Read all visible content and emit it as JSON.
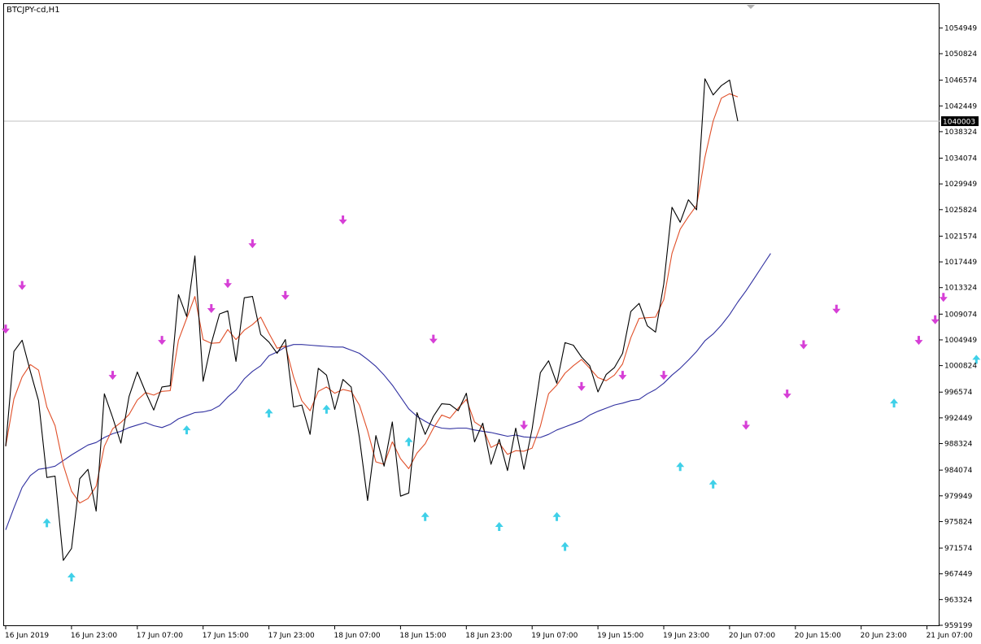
{
  "window": {
    "symbol_label": "BTCJPY-cd,H1"
  },
  "colors": {
    "price": "#000000",
    "fast_ma": "#e0502a",
    "slow_ma": "#3030a0",
    "sell_arrow": "#d63fd6",
    "buy_arrow": "#3fd0e8",
    "current_price_bg": "#000000",
    "grid_line": "#c0c0c0"
  },
  "chart_data": {
    "type": "line",
    "title": "BTCJPY-cd,H1",
    "xlabel": "",
    "ylabel": "",
    "ylim": [
      959199,
      1056949
    ],
    "y_ticks": [
      "1054949",
      "1050824",
      "1046574",
      "1042449",
      "1038324",
      "1034074",
      "1029949",
      "1025824",
      "1021574",
      "1017449",
      "1013324",
      "1009074",
      "1004949",
      "1000824",
      "996574",
      "992449",
      "988324",
      "984074",
      "979949",
      "975824",
      "971574",
      "967449",
      "963324",
      "959199"
    ],
    "x_ticks": [
      "16 Jun 2019",
      "16 Jun 23:00",
      "17 Jun 07:00",
      "17 Jun 15:00",
      "17 Jun 23:00",
      "18 Jun 07:00",
      "18 Jun 15:00",
      "18 Jun 23:00",
      "19 Jun 07:00",
      "19 Jun 15:00",
      "19 Jun 23:00",
      "20 Jun 07:00",
      "20 Jun 15:00",
      "20 Jun 23:00",
      "21 Jun 07:00"
    ],
    "current_price": 1040003,
    "series": [
      {
        "values": [
          987900,
          1003100,
          1004900,
          999900,
          995200,
          982900,
          983100,
          969600,
          971500,
          982700,
          984200,
          977500,
          996300,
          992500,
          988400,
          995900,
          999800,
          996600,
          993700,
          997400,
          997600,
          1012200,
          1008700,
          1018400,
          998300,
          1004400,
          1009100,
          1009600,
          1001500,
          1011700,
          1011900,
          1005800,
          1004600,
          1002800,
          1005000,
          994200,
          994500,
          989800,
          1000400,
          999300,
          993800,
          998600,
          997400,
          989300,
          979200,
          989600,
          984700,
          991800,
          979900,
          980400,
          993300,
          989800,
          992700,
          994700,
          994600,
          993600,
          996400,
          988600,
          991600,
          985000,
          989000,
          984000,
          990800,
          984200,
          990700,
          999700,
          1001600,
          998000,
          1004500,
          1004100,
          1002200,
          1000800,
          996600,
          999400,
          1000500,
          1002800,
          1009500,
          1010800,
          1007200,
          1006200,
          1013900,
          1026200,
          1023800,
          1027400,
          1025800,
          1046800,
          1044200,
          1045700,
          1046600,
          1040000
        ]
      },
      {
        "values": [
          987900,
          995500,
          999000,
          1001000,
          1000100,
          994200,
          991200,
          984900,
          980700,
          978800,
          979500,
          981500,
          987900,
          990700,
          991700,
          993000,
          995300,
          996500,
          996100,
          996700,
          996800,
          1004900,
          1008400,
          1011900,
          1005000,
          1004400,
          1004500,
          1006600,
          1005000,
          1006500,
          1007400,
          1008600,
          1006000,
          1003600,
          1004000,
          999000,
          995200,
          993600,
          996700,
          997400,
          996400,
          997000,
          996700,
          994500,
          990400,
          985400,
          985000,
          988600,
          985900,
          984300,
          986800,
          988300,
          990800,
          992900,
          992400,
          994000,
          995400,
          991800,
          990900,
          987700,
          988400,
          986600,
          987200,
          987100,
          987600,
          991100,
          996300,
          997700,
          999600,
          1000800,
          1001800,
          1000400,
          998900,
          998400,
          999300,
          1001100,
          1005300,
          1008400,
          1008500,
          1008600,
          1011400,
          1018800,
          1022700,
          1024700,
          1026500,
          1034200,
          1040000,
          1043700,
          1044400,
          1043900
        ]
      },
      {
        "values": [
          974500,
          978000,
          981300,
          983200,
          984200,
          984400,
          984700,
          985600,
          986500,
          987300,
          988100,
          988500,
          989300,
          989900,
          990300,
          990900,
          991300,
          991700,
          991200,
          990900,
          991400,
          992300,
          992800,
          993300,
          993400,
          993700,
          994400,
          995800,
          996900,
          998700,
          999900,
          1000800,
          1002400,
          1003000,
          1003800,
          1004200,
          1004200,
          1004100,
          1004000,
          1003900,
          1003800,
          1003800,
          1003300,
          1002800,
          1001800,
          1000700,
          999300,
          997700,
          995800,
          993900,
          992700,
          991900,
          991200,
          990800,
          990700,
          990800,
          990800,
          990500,
          990300,
          990100,
          989800,
          989500,
          989700,
          989400,
          989300,
          989300,
          989800,
          990500,
          991000,
          991500,
          992000,
          992900,
          993500,
          994000,
          994500,
          994800,
          995200,
          995400,
          996300,
          997000,
          998000,
          999300,
          1000400,
          1001700,
          1003100,
          1004800,
          1005900,
          1007300,
          1009000,
          1011000,
          1012800,
          1014800,
          1016800,
          1018800
        ]
      }
    ],
    "sell_signals": [
      {
        "i": 0,
        "y": 1006600
      },
      {
        "i": 2,
        "y": 1013600
      },
      {
        "i": 13,
        "y": 999200
      },
      {
        "i": 19,
        "y": 1004800
      },
      {
        "i": 25,
        "y": 1009900
      },
      {
        "i": 27,
        "y": 1013900
      },
      {
        "i": 30,
        "y": 1020300
      },
      {
        "i": 34,
        "y": 1012000
      },
      {
        "i": 41,
        "y": 1024100
      },
      {
        "i": 52,
        "y": 1005000
      },
      {
        "i": 63,
        "y": 991200
      },
      {
        "i": 70,
        "y": 997400
      },
      {
        "i": 75,
        "y": 999200
      },
      {
        "i": 80,
        "y": 999200
      },
      {
        "i": 90,
        "y": 991200
      },
      {
        "i": 95,
        "y": 996200
      },
      {
        "i": 97,
        "y": 1004100
      },
      {
        "i": 101,
        "y": 1009800
      },
      {
        "i": 111,
        "y": 1004800
      },
      {
        "i": 113,
        "y": 1008100
      },
      {
        "i": 114,
        "y": 1011700
      },
      {
        "i": 120,
        "y": 1023800
      },
      {
        "i": 121,
        "y": 1031600
      },
      {
        "i": 124,
        "y": 1031600
      },
      {
        "i": 125,
        "y": 1033200
      },
      {
        "i": 126,
        "y": 1051300
      }
    ],
    "buy_signals": [
      {
        "i": 5,
        "y": 975700
      },
      {
        "i": 8,
        "y": 967000
      },
      {
        "i": 22,
        "y": 990600
      },
      {
        "i": 32,
        "y": 993300
      },
      {
        "i": 39,
        "y": 993900
      },
      {
        "i": 49,
        "y": 988700
      },
      {
        "i": 51,
        "y": 976700
      },
      {
        "i": 60,
        "y": 975100
      },
      {
        "i": 67,
        "y": 976700
      },
      {
        "i": 68,
        "y": 971900
      },
      {
        "i": 82,
        "y": 984700
      },
      {
        "i": 86,
        "y": 981900
      },
      {
        "i": 108,
        "y": 994900
      },
      {
        "i": 118,
        "y": 1001900
      }
    ]
  }
}
